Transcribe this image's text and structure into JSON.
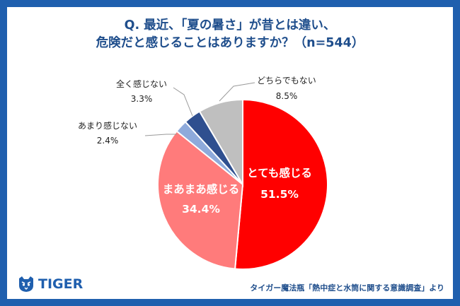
{
  "title_lines": [
    "Q. 最近、「夏の暑さ」が昔とは違い、",
    "危険だと感じることはありますか？（n=544）"
  ],
  "chart_data": {
    "type": "pie",
    "title": "Q. 最近、「夏の暑さ」が昔とは違い、危険だと感じることはありますか？（n=544）",
    "slices": [
      {
        "label": "とても感じる",
        "value": 51.5,
        "display": "51.5%",
        "color": "#ff0000"
      },
      {
        "label": "まあまあ感じる",
        "value": 34.4,
        "display": "34.4%",
        "color": "#ff7b7b"
      },
      {
        "label": "あまり感じない",
        "value": 2.4,
        "display": "2.4%",
        "color": "#8eaadb"
      },
      {
        "label": "全く感じない",
        "value": 3.3,
        "display": "3.3%",
        "color": "#2f4f8f"
      },
      {
        "label": "どちらでもない",
        "value": 8.5,
        "display": "8.5%",
        "color": "#bfbfbf"
      }
    ]
  },
  "brand": {
    "name": "TIGER",
    "icon": "tiger-head-icon",
    "color": "#1f5fae"
  },
  "source_note": "タイガー魔法瓶「熱中症と水筒に関する意識調査」より"
}
